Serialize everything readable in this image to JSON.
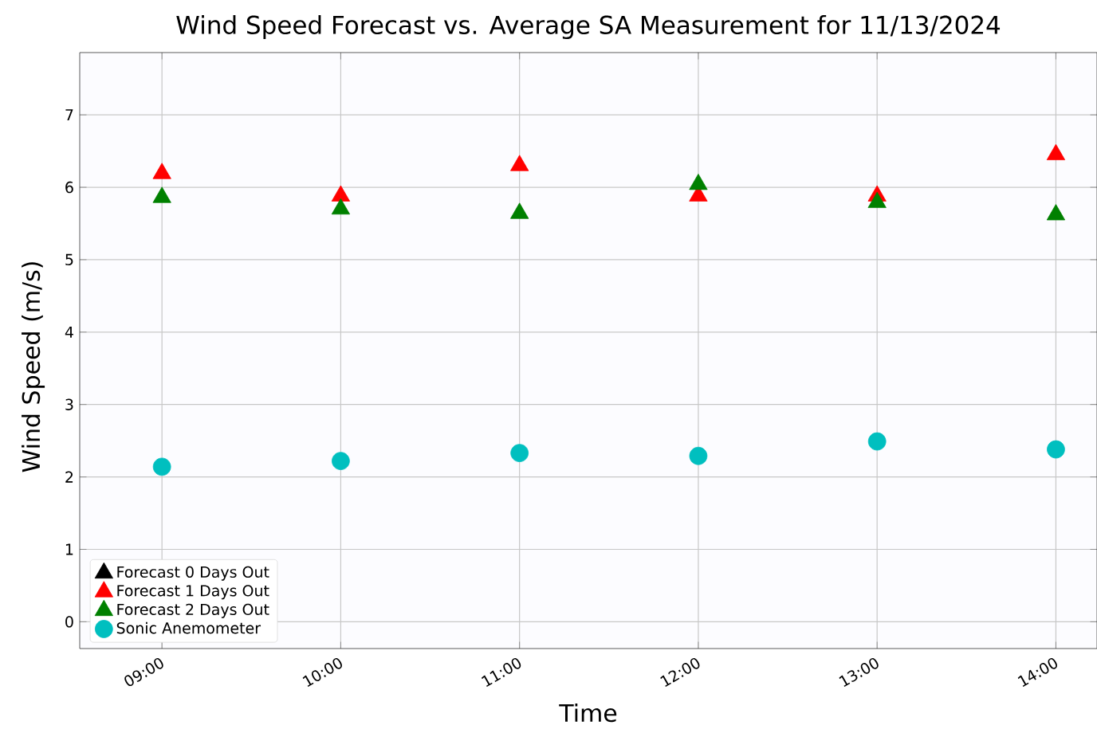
{
  "chart_data": {
    "type": "scatter",
    "title": "Wind Speed Forecast vs. Average SA Measurement for 11/13/2024",
    "xlabel": "Time",
    "ylabel": "Wind Speed (m/s)",
    "x": [
      9,
      10,
      11,
      12,
      13,
      14
    ],
    "xlim": [
      8.54,
      14.23
    ],
    "xticks": [
      {
        "value": 9,
        "label": "09:00"
      },
      {
        "value": 10,
        "label": "10:00"
      },
      {
        "value": 11,
        "label": "11:00"
      },
      {
        "value": 12,
        "label": "12:00"
      },
      {
        "value": 13,
        "label": "13:00"
      },
      {
        "value": 14,
        "label": "14:00"
      }
    ],
    "ylim": [
      -0.37,
      7.86
    ],
    "yticks": [
      0,
      1,
      2,
      3,
      4,
      5,
      6,
      7
    ],
    "grid": true,
    "legend": "bottom left",
    "series": [
      {
        "name": "Forecast 0 Days Out",
        "color": "#000000",
        "marker": "triangle",
        "values": [
          null,
          null,
          null,
          null,
          null,
          null
        ]
      },
      {
        "name": "Forecast 1 Days Out",
        "color": "#ff0000",
        "marker": "triangle",
        "values": [
          6.19,
          5.88,
          6.3,
          5.88,
          5.88,
          6.45
        ]
      },
      {
        "name": "Forecast 2 Days Out",
        "color": "#008000",
        "marker": "triangle",
        "values": [
          5.86,
          5.7,
          5.64,
          6.04,
          5.79,
          5.62
        ]
      },
      {
        "name": "Sonic Anemometer",
        "color": "#00bfbf",
        "marker": "circle",
        "values": [
          2.14,
          2.22,
          2.33,
          2.29,
          2.49,
          2.38
        ]
      }
    ]
  }
}
